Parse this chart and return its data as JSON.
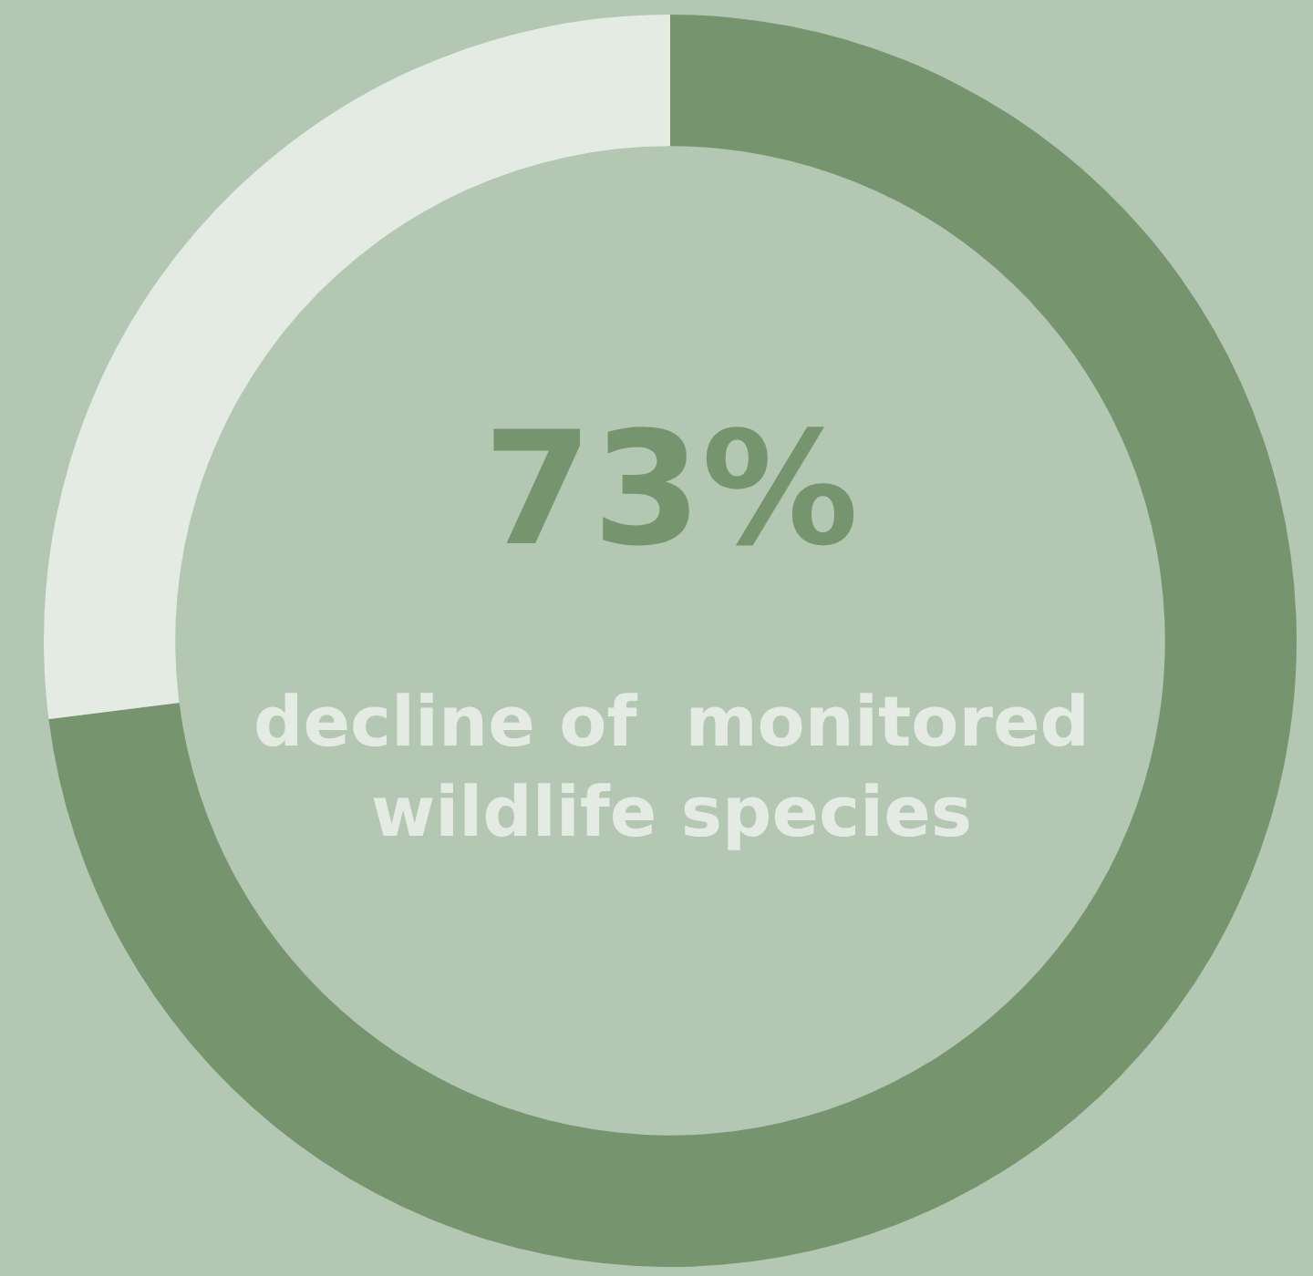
{
  "chart_data": {
    "type": "donut",
    "categories": [
      null,
      null
    ],
    "values": [
      73,
      27
    ],
    "colors": [
      "#76956f",
      "#e3ebe3"
    ],
    "annotations": [
      "73%",
      "decline of  monitored wildlife species"
    ]
  }
}
